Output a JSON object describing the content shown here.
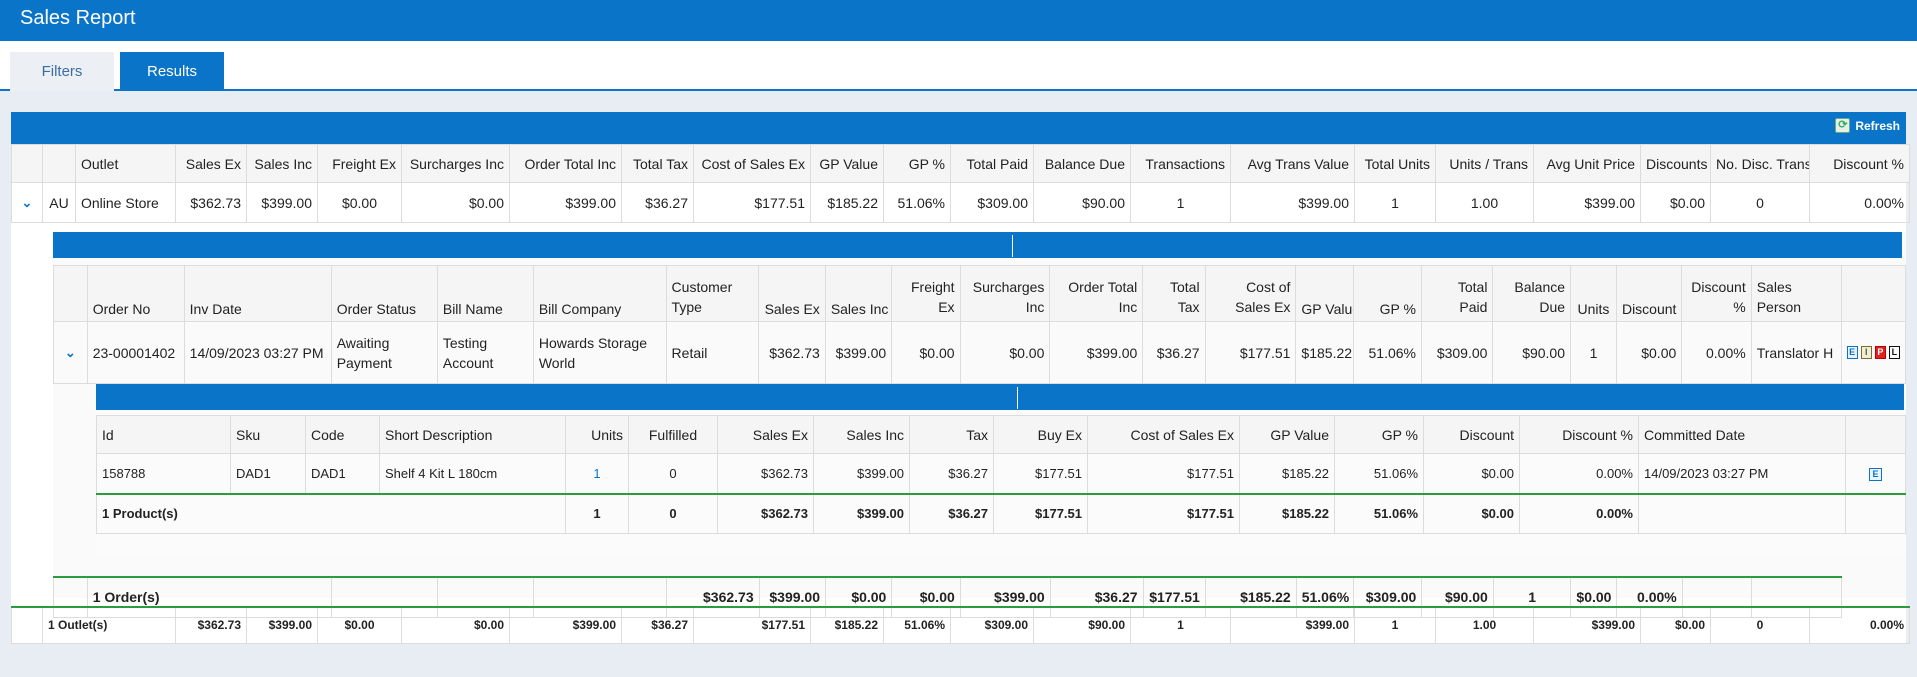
{
  "header": {
    "title": "Sales Report"
  },
  "tabs": {
    "filters": "Filters",
    "results": "Results"
  },
  "toolbar": {
    "refresh_label": "Refresh"
  },
  "outlet_table": {
    "columns": [
      "Outlet",
      "Sales Ex",
      "Sales Inc",
      "Freight Ex",
      "Surcharges Inc",
      "Order Total Inc",
      "Total Tax",
      "Cost of Sales Ex",
      "GP Value",
      "GP %",
      "Total Paid",
      "Balance Due",
      "Transactions",
      "Avg Trans Value",
      "Total Units",
      "Units / Trans",
      "Avg Unit Price",
      "Discounts",
      "No. Disc. Trans",
      "Discount %"
    ],
    "row": {
      "expand": "⌄",
      "group": "AU",
      "cells": [
        "Online Store",
        "$362.73",
        "$399.00",
        "$0.00",
        "$0.00",
        "$399.00",
        "$36.27",
        "$177.51",
        "$185.22",
        "51.06%",
        "$309.00",
        "$90.00",
        "1",
        "$399.00",
        "1",
        "1.00",
        "$399.00",
        "$0.00",
        "0",
        "0.00%"
      ]
    },
    "summary": [
      "1 Outlet(s)",
      "$362.73",
      "$399.00",
      "$0.00",
      "$0.00",
      "$399.00",
      "$36.27",
      "$177.51",
      "$185.22",
      "51.06%",
      "$309.00",
      "$90.00",
      "1",
      "$399.00",
      "1",
      "1.00",
      "$399.00",
      "$0.00",
      "0",
      "0.00%"
    ]
  },
  "order_table": {
    "columns": [
      "Order No",
      "Inv Date",
      "Order Status",
      "Bill Name",
      "Bill Company",
      "Customer Type",
      "Sales Ex",
      "Sales Inc",
      "Freight Ex",
      "Surcharges Inc",
      "Order Total Inc",
      "Total Tax",
      "Cost of Sales Ex",
      "GP Value",
      "GP %",
      "Total Paid",
      "Balance Due",
      "Units",
      "Discount",
      "Discount %",
      "Sales Person"
    ],
    "row": [
      "23-00001402",
      "14/09/2023 03:27 PM",
      "Awaiting Payment",
      "Testing Account",
      "Howards Storage World",
      "Retail",
      "$362.73",
      "$399.00",
      "$0.00",
      "$0.00",
      "$399.00",
      "$36.27",
      "$177.51",
      "$185.22",
      "51.06%",
      "$309.00",
      "$90.00",
      "1",
      "$0.00",
      "0.00%",
      "Translator H"
    ],
    "icons": [
      "E",
      "I",
      "P",
      "L"
    ],
    "summary": [
      "1 Order(s)",
      "$362.73",
      "$399.00",
      "$0.00",
      "$0.00",
      "$399.00",
      "$36.27",
      "$177.51",
      "$185.22",
      "51.06%",
      "$309.00",
      "$90.00",
      "1",
      "$0.00",
      "0.00%"
    ]
  },
  "product_table": {
    "columns": [
      "Id",
      "Sku",
      "Code",
      "Short Description",
      "Units",
      "Fulfilled",
      "Sales Ex",
      "Sales Inc",
      "Tax",
      "Buy Ex",
      "Cost of Sales Ex",
      "GP Value",
      "GP %",
      "Discount",
      "Discount %",
      "Committed Date"
    ],
    "row": [
      "158788",
      "DAD1",
      "DAD1",
      "Shelf 4 Kit L 180cm",
      "1",
      "0",
      "$362.73",
      "$399.00",
      "$36.27",
      "$177.51",
      "$177.51",
      "$185.22",
      "51.06%",
      "$0.00",
      "0.00%",
      "14/09/2023 03:27 PM"
    ],
    "icon": "E",
    "summary": [
      "1 Product(s)",
      "1",
      "0",
      "$362.73",
      "$399.00",
      "$36.27",
      "$177.51",
      "$177.51",
      "$185.22",
      "51.06%",
      "$0.00",
      "0.00%"
    ]
  }
}
